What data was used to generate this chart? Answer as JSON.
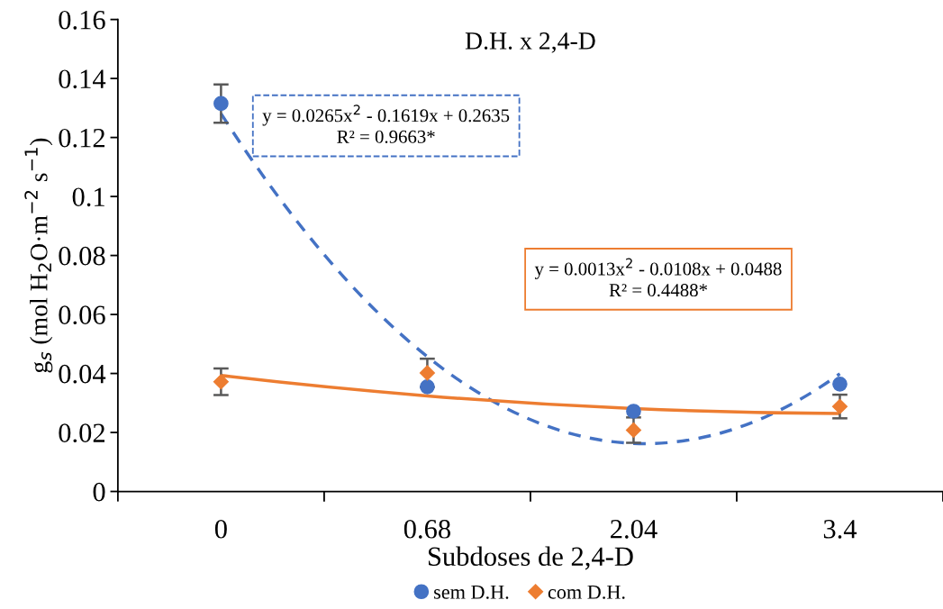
{
  "chart_data": {
    "type": "scatter",
    "title": "D.H. x 2,4-D",
    "xlabel": "Subdoses de 2,4-D",
    "ylabel": "g$_{s}$ (mol H$_{2}$O·m$^{−2}$ s$^{−1}$)",
    "categories": [
      "0",
      "0.68",
      "2.04",
      "3.4"
    ],
    "ylim": [
      0,
      0.16
    ],
    "yticks": [
      0,
      0.02,
      0.04,
      0.06,
      0.08,
      {
        "value": 0.1,
        "label": "0.1"
      },
      0.12,
      0.14,
      0.16
    ],
    "grid": false,
    "legend": "bottom",
    "series": [
      {
        "name": "sem D.H.",
        "marker": "circle",
        "color": "#4472c4",
        "values": [
          0.1315,
          0.0355,
          0.0272,
          0.0364
        ],
        "errors": [
          0.0065,
          null,
          null,
          null
        ]
      },
      {
        "name": "com D.H.",
        "marker": "diamond",
        "color": "#ed7d31",
        "values": [
          0.0372,
          0.0402,
          0.0208,
          0.0288
        ],
        "errors": [
          0.0045,
          0.0048,
          0.0043,
          0.004
        ]
      },
      {
        "type": "line",
        "line_style": "dashed",
        "marker": "none",
        "color": "#4472c4",
        "values": [
          0.1281,
          0.0457,
          0.0163,
          0.0399
        ]
      },
      {
        "type": "line",
        "line_style": "solid",
        "marker": "none",
        "color": "#ed7d31",
        "values": [
          0.0393,
          0.0324,
          0.0281,
          0.0264
        ]
      }
    ],
    "annotations": [
      "y = 0.0265x$^{2}$ - 0.1619x + 0.2635\nR² = 0.9663*",
      "y = 0.0013x$^{2}$ - 0.0108x + 0.0488\nR² = 0.4488*"
    ]
  }
}
